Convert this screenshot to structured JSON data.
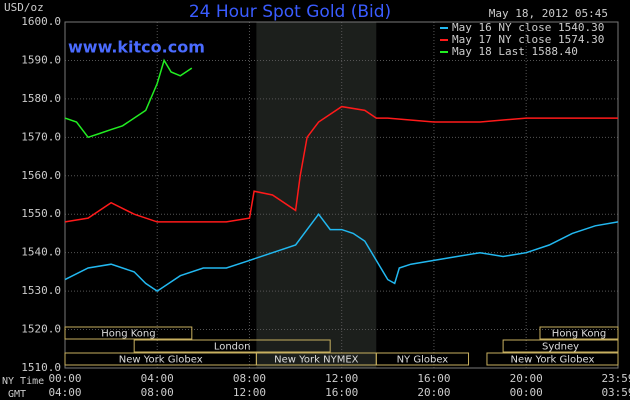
{
  "chart_data": {
    "type": "line",
    "title": "24 Hour Spot Gold (Bid)",
    "subtitle": "May 18, 2012 05:45",
    "watermark": "www.kitco.com",
    "y_label": "USD/oz",
    "x_label": "NY Time",
    "x2_label": "GMT",
    "xlim": [
      0,
      23.983
    ],
    "ylim": [
      1510,
      1600
    ],
    "yticks": [
      {
        "value": 1510,
        "label": "1510.0"
      },
      {
        "value": 1520,
        "label": "1520.0"
      },
      {
        "value": 1530,
        "label": "1530.0"
      },
      {
        "value": 1540,
        "label": "1540.0"
      },
      {
        "value": 1550,
        "label": "1550.0"
      },
      {
        "value": 1560,
        "label": "1560.0"
      },
      {
        "value": 1570,
        "label": "1570.0"
      },
      {
        "value": 1580,
        "label": "1580.0"
      },
      {
        "value": 1590,
        "label": "1590.0"
      },
      {
        "value": 1600,
        "label": "1600.0"
      }
    ],
    "xticks": [
      {
        "value": 0,
        "label": "00:00"
      },
      {
        "value": 4,
        "label": "04:00"
      },
      {
        "value": 8,
        "label": "08:00"
      },
      {
        "value": 12,
        "label": "12:00"
      },
      {
        "value": 16,
        "label": "16:00"
      },
      {
        "value": 20,
        "label": "20:00"
      },
      {
        "value": 23.983,
        "label": "23:59"
      }
    ],
    "x2ticks": [
      {
        "value": 0,
        "label": "04:00"
      },
      {
        "value": 4,
        "label": "08:00"
      },
      {
        "value": 8,
        "label": "12:00"
      },
      {
        "value": 12,
        "label": "16:00"
      },
      {
        "value": 16,
        "label": "20:00"
      },
      {
        "value": 20,
        "label": "00:00"
      },
      {
        "value": 23.983,
        "label": "03:59"
      }
    ],
    "grid": true,
    "sessions": [
      {
        "label": "Hong Kong",
        "start": 0,
        "end": 5.5,
        "row": 0
      },
      {
        "label": "Hong Kong",
        "start": 20.6,
        "end": 23.983,
        "row": 0
      },
      {
        "label": "London",
        "start": 3,
        "end": 11.5,
        "row": 1
      },
      {
        "label": "Sydney",
        "start": 19,
        "end": 23.983,
        "row": 1
      },
      {
        "label": "New York Globex",
        "start": 0,
        "end": 8.3,
        "row": 2
      },
      {
        "label": "New York NYMEX",
        "start": 8.3,
        "end": 13.5,
        "row": 2
      },
      {
        "label": "NY Globex",
        "start": 13.5,
        "end": 17.5,
        "row": 2
      },
      {
        "label": "New York Globex",
        "start": 18.3,
        "end": 23.983,
        "row": 2
      }
    ],
    "highlight": [
      8.3,
      13.5
    ],
    "series": [
      {
        "name": "May 16 NY close 1540.30",
        "color": "#22b8f0",
        "x": [
          0,
          1,
          2,
          3,
          3.5,
          4,
          4.5,
          5,
          6,
          7,
          8,
          9,
          10,
          10.5,
          11,
          11.5,
          12,
          12.5,
          13,
          13.5,
          14,
          14.3,
          14.5,
          15,
          16,
          17,
          18,
          19,
          20,
          21,
          22,
          23,
          23.983
        ],
        "values": [
          1533,
          1536,
          1537,
          1535,
          1532,
          1530,
          1532,
          1534,
          1536,
          1536,
          1538,
          1540,
          1542,
          1546,
          1550,
          1546,
          1546,
          1545,
          1543,
          1538,
          1533,
          1532,
          1536,
          1537,
          1538,
          1539,
          1540,
          1539,
          1540,
          1542,
          1545,
          1547,
          1548
        ]
      },
      {
        "name": "May 17 NY close 1574.30",
        "color": "#ff1a1a",
        "x": [
          0,
          1,
          2,
          3,
          4,
          5,
          6,
          7,
          8,
          8.2,
          9,
          10,
          10.2,
          10.5,
          11,
          12,
          13,
          13.5,
          14,
          16,
          18,
          20,
          22,
          23.983
        ],
        "values": [
          1548,
          1549,
          1553,
          1550,
          1548,
          1548,
          1548,
          1548,
          1549,
          1556,
          1555,
          1551,
          1560,
          1570,
          1574,
          1578,
          1577,
          1575,
          1575,
          1574,
          1574,
          1575,
          1575,
          1575
        ]
      },
      {
        "name": "May 18 Last 1588.40",
        "color": "#22ee22",
        "x": [
          0,
          0.5,
          1,
          1.5,
          2,
          2.5,
          3.5,
          4,
          4.3,
          4.6,
          5,
          5.5
        ],
        "values": [
          1575,
          1574,
          1570,
          1571,
          1572,
          1573,
          1577,
          1584,
          1590,
          1587,
          1586,
          1588
        ]
      }
    ]
  }
}
